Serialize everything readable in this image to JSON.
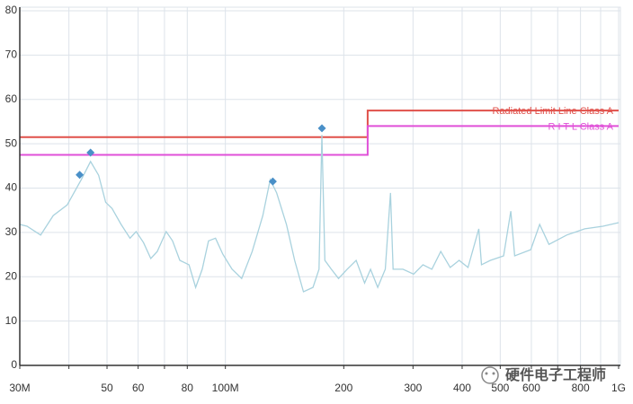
{
  "chart_data": {
    "type": "line",
    "xscale": "log",
    "grid": true,
    "xlim": [
      30,
      1000
    ],
    "ylim": [
      0,
      80
    ],
    "xticks": [
      {
        "value": 30,
        "label": "30M"
      },
      {
        "value": 40,
        "label": null
      },
      50,
      60,
      {
        "value": 70,
        "label": null
      },
      80,
      {
        "value": 100,
        "label": "100M"
      },
      200,
      300,
      400,
      500,
      600,
      {
        "value": 700,
        "label": null
      },
      800,
      {
        "value": 900,
        "label": null
      },
      {
        "value": 1000,
        "label": "1G"
      }
    ],
    "yticks": [
      0,
      10,
      20,
      30,
      40,
      50,
      60,
      70,
      80
    ],
    "series": [
      {
        "name": "Radiated Limit Line Class A",
        "color": "#e0504a",
        "x": [
          30,
          230,
          230,
          1000
        ],
        "values": [
          51.5,
          51.5,
          57.5,
          57.5
        ]
      },
      {
        "name": "R I T L Class A",
        "color": "#e050d8",
        "x": [
          30,
          230,
          230,
          1000
        ],
        "values": [
          47.5,
          47.5,
          54,
          54
        ]
      },
      {
        "name": null,
        "color": "#a9d2de",
        "x": [
          30,
          31.3,
          33.9,
          36.5,
          39.6,
          43.0,
          45.4,
          47.6,
          49.6,
          51.5,
          54.3,
          57.2,
          59.3,
          61.9,
          64.6,
          67.1,
          70.7,
          73.4,
          76.6,
          80.8,
          84.0,
          87.3,
          90.6,
          94.4,
          98.5,
          104,
          110,
          117,
          124.5,
          130,
          135,
          143,
          150,
          158,
          167,
          173,
          176,
          179,
          186,
          194,
          204,
          215,
          226,
          234,
          244,
          255,
          263,
          267,
          283,
          301,
          318,
          335,
          353,
          373,
          393,
          414,
          441,
          448,
          472,
          510,
          532,
          544,
          598,
          630,
          665,
          738,
          820,
          912,
          1000
        ],
        "values": [
          31.8,
          31.4,
          29.4,
          33.8,
          36.2,
          41.9,
          46,
          42.9,
          36.8,
          35.4,
          31.8,
          28.7,
          30.2,
          27.7,
          24.1,
          25.7,
          30.2,
          28.1,
          23.7,
          22.7,
          17.6,
          21.7,
          28.1,
          28.7,
          25.1,
          21.7,
          19.6,
          25.7,
          33.8,
          41.9,
          38.9,
          31.8,
          23.7,
          16.6,
          17.6,
          21.7,
          52,
          23.7,
          21.7,
          19.6,
          21.7,
          23.7,
          18.6,
          21.7,
          17.6,
          21.7,
          38.9,
          21.7,
          21.7,
          20.6,
          22.7,
          21.7,
          25.7,
          22.1,
          23.7,
          22.1,
          30.8,
          22.7,
          23.7,
          24.7,
          34.8,
          24.7,
          26.1,
          31.8,
          27.3,
          29.4,
          30.8,
          31.4,
          32.2
        ]
      }
    ],
    "markers": {
      "color": "#4a90c8",
      "x": [
        42.6,
        45.4,
        132,
        176
      ],
      "values": [
        43,
        48,
        41.5,
        53.5
      ]
    },
    "watermark": "硬件电子工程师"
  }
}
